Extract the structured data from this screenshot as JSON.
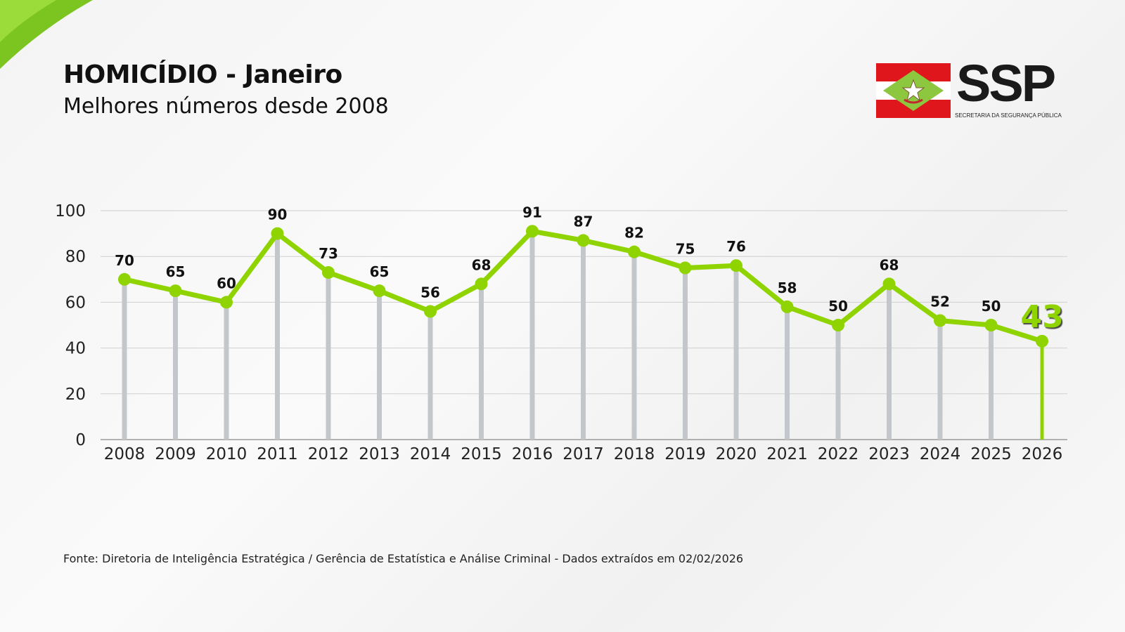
{
  "header": {
    "title": "HOMICÍDIO - Janeiro",
    "subtitle": "Melhores números desde 2008"
  },
  "logo": {
    "text": "SSP",
    "subtext": "SECRETARIA DA SEGURANÇA PÚBLICA"
  },
  "footer": {
    "source": "Fonte: Diretoria de Inteligência Estratégica / Gerência de Estatística e Análise Criminal - Dados extraídos em 02/02/2026"
  },
  "colors": {
    "accent": "#8fd400",
    "bars": "#c3c7cb",
    "grid": "#cfcfcf",
    "text": "#111111"
  },
  "chart_data": {
    "type": "line",
    "title": "HOMICÍDIO - Janeiro",
    "categories": [
      "2008",
      "2009",
      "2010",
      "2011",
      "2012",
      "2013",
      "2014",
      "2015",
      "2016",
      "2017",
      "2018",
      "2019",
      "2020",
      "2021",
      "2022",
      "2023",
      "2024",
      "2025",
      "2026"
    ],
    "values": [
      70,
      65,
      60,
      90,
      73,
      65,
      56,
      68,
      91,
      87,
      82,
      75,
      76,
      58,
      50,
      68,
      52,
      50,
      43
    ],
    "highlight_index": 18,
    "ylim": [
      0,
      100
    ],
    "yticks": [
      0,
      20,
      40,
      60,
      80,
      100
    ],
    "grid": true,
    "xlabel": "",
    "ylabel": ""
  }
}
